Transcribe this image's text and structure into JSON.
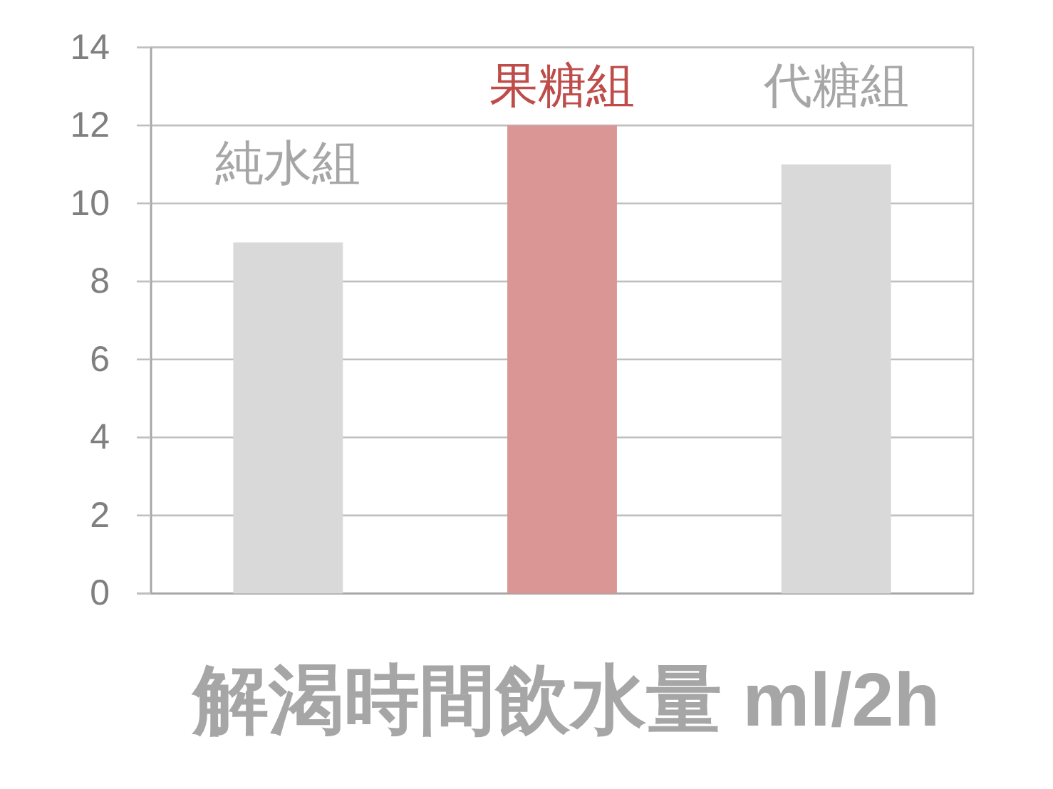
{
  "chart_data": {
    "type": "bar",
    "categories": [
      "純水組",
      "果糖組",
      "代糖組"
    ],
    "values": [
      9,
      12,
      11
    ],
    "colors": [
      "#d9d9d9",
      "#d99694",
      "#d9d9d9"
    ],
    "xlabel": "解渴時間飲水量 ml/2h",
    "ylim": [
      0,
      14
    ],
    "yticks": [
      0,
      2,
      4,
      6,
      8,
      10,
      12,
      14
    ],
    "grid": "y"
  }
}
